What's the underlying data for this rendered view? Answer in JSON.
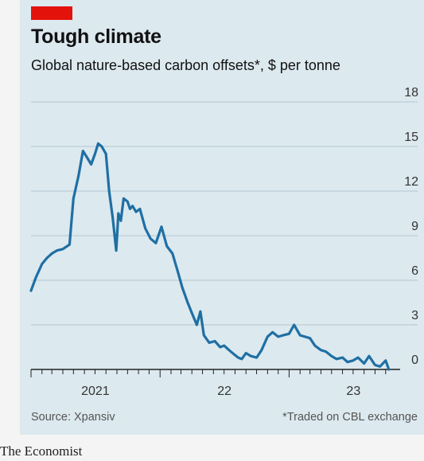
{
  "header": {
    "title": "Tough climate",
    "subtitle": "Global nature-based carbon offsets*, $ per tonne",
    "accent_color": "#e3120b"
  },
  "footer": {
    "source": "Source: Xpansiv",
    "footnote": "*Traded on CBL exchange"
  },
  "brand": "The Economist",
  "chart_data": {
    "type": "line",
    "title": "Tough climate",
    "subtitle": "Global nature-based carbon offsets*, $ per tonne",
    "xlabel": "",
    "ylabel": "$ per tonne",
    "ylim": [
      0,
      18
    ],
    "yticks": [
      0,
      3,
      6,
      9,
      12,
      15,
      18
    ],
    "ytick_labels": [
      "0",
      "3",
      "6",
      "9",
      "12",
      "15",
      "18"
    ],
    "xlim": [
      "2021-01-01",
      "2023-10-15"
    ],
    "xtick_labels": [
      {
        "label": "2021",
        "date": "2021-01-01"
      },
      {
        "label": "22",
        "date": "2022-01-01"
      },
      {
        "label": "23",
        "date": "2023-01-01"
      }
    ],
    "grid": "horizontal",
    "line_color": "#1f6fa3",
    "series": [
      {
        "name": "",
        "x": [
          "2021-01-01",
          "2021-01-15",
          "2021-02-01",
          "2021-02-15",
          "2021-03-01",
          "2021-03-15",
          "2021-04-01",
          "2021-04-20",
          "2021-05-01",
          "2021-05-15",
          "2021-05-28",
          "2021-06-10",
          "2021-06-20",
          "2021-07-01",
          "2021-07-10",
          "2021-07-20",
          "2021-08-01",
          "2021-08-10",
          "2021-08-20",
          "2021-08-30",
          "2021-09-05",
          "2021-09-12",
          "2021-09-20",
          "2021-10-01",
          "2021-10-08",
          "2021-10-15",
          "2021-10-25",
          "2021-11-05",
          "2021-11-20",
          "2021-12-05",
          "2021-12-20",
          "2022-01-05",
          "2022-01-20",
          "2022-02-05",
          "2022-02-20",
          "2022-03-05",
          "2022-03-20",
          "2022-04-01",
          "2022-04-15",
          "2022-04-25",
          "2022-05-05",
          "2022-05-20",
          "2022-06-05",
          "2022-06-20",
          "2022-07-01",
          "2022-07-15",
          "2022-07-30",
          "2022-08-10",
          "2022-08-20",
          "2022-09-01",
          "2022-09-15",
          "2022-10-01",
          "2022-10-15",
          "2022-11-01",
          "2022-11-15",
          "2022-12-01",
          "2022-12-15",
          "2023-01-01",
          "2023-01-15",
          "2023-02-01",
          "2023-02-15",
          "2023-03-01",
          "2023-03-15",
          "2023-04-01",
          "2023-04-15",
          "2023-05-01",
          "2023-05-15",
          "2023-06-01",
          "2023-06-15",
          "2023-07-01",
          "2023-07-15",
          "2023-08-01",
          "2023-08-15",
          "2023-09-01",
          "2023-09-15",
          "2023-10-01",
          "2023-10-10"
        ],
        "values": [
          5.3,
          6.2,
          7.1,
          7.5,
          7.8,
          8.0,
          8.1,
          8.4,
          11.5,
          13.0,
          14.7,
          14.2,
          13.8,
          14.5,
          15.2,
          15.0,
          14.5,
          12.0,
          10.2,
          8.0,
          10.5,
          10.0,
          11.5,
          11.3,
          10.8,
          11.0,
          10.6,
          10.8,
          9.5,
          8.8,
          8.5,
          9.6,
          8.3,
          7.8,
          6.6,
          5.5,
          4.5,
          3.8,
          3.0,
          3.9,
          2.3,
          1.8,
          1.9,
          1.5,
          1.6,
          1.3,
          1.0,
          0.8,
          0.7,
          1.1,
          0.9,
          0.8,
          1.3,
          2.2,
          2.5,
          2.2,
          2.3,
          2.4,
          3.0,
          2.3,
          2.2,
          2.1,
          1.6,
          1.3,
          1.2,
          0.9,
          0.7,
          0.8,
          0.5,
          0.6,
          0.8,
          0.4,
          0.9,
          0.3,
          0.2,
          0.6,
          0.0
        ]
      }
    ]
  }
}
